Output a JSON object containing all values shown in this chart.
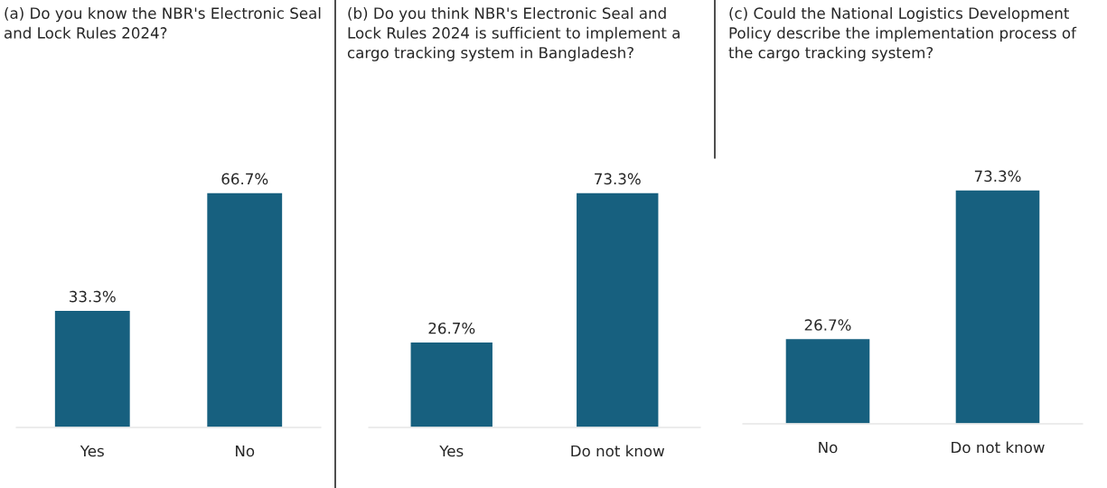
{
  "chart_data": [
    {
      "type": "bar",
      "title": "(a) Do you know the NBR's Electronic Seal and Lock Rules 2024?",
      "categories": [
        "Yes",
        "No"
      ],
      "values": [
        33.3,
        66.7
      ],
      "value_labels": [
        "33.3%",
        "66.7%"
      ],
      "color": "#17607f",
      "tick_labels": "x"
    },
    {
      "type": "bar",
      "title": "(b) Do you think NBR's Electronic Seal and Lock Rules 2024 is sufficient to implement a cargo tracking system in Bangladesh?",
      "categories": [
        "Yes",
        "Do not know"
      ],
      "values": [
        26.7,
        73.3
      ],
      "value_labels": [
        "26.7%",
        "73.3%"
      ],
      "color": "#17607f",
      "tick_labels": "x"
    },
    {
      "type": "bar",
      "title": "(c) Could the National Logistics Development Policy describe the implementation process of the cargo tracking system?",
      "categories": [
        "No",
        "Do not know"
      ],
      "values": [
        26.7,
        73.3
      ],
      "value_labels": [
        "26.7%",
        "73.3%"
      ],
      "color": "#17607f",
      "tick_labels": "x"
    }
  ]
}
